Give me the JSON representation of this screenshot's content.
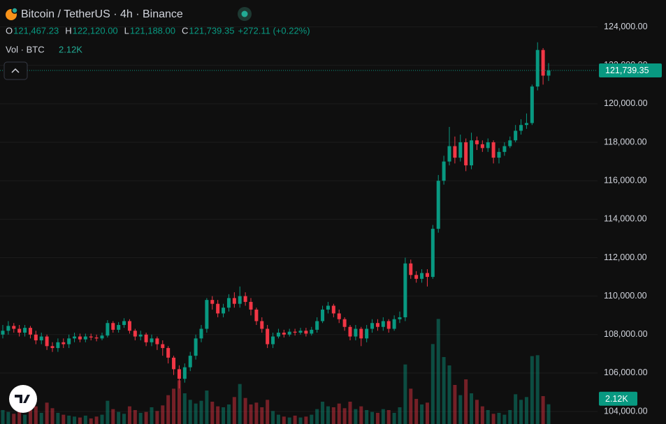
{
  "chart_data": {
    "type": "candlestick",
    "title": "Bitcoin / TetherUS · 4h · Binance",
    "legend": [
      {
        "key": "O",
        "value": "121,467.23"
      },
      {
        "key": "H",
        "value": "122,120.00"
      },
      {
        "key": "L",
        "value": "121,188.00"
      },
      {
        "key": "C",
        "value": "121,739.35"
      }
    ],
    "change": "+272.11 (+0.22%)",
    "volume_title": "Vol · BTC",
    "volume_value": "2.12K",
    "up_color": "#089981",
    "down_color": "#f23645",
    "ylim": [
      103350,
      125400
    ],
    "yticks": [
      {
        "value": 104000,
        "label": "104,000.00"
      },
      {
        "value": 106000,
        "label": "106,000.00"
      },
      {
        "value": 108000,
        "label": "108,000.00"
      },
      {
        "value": 110000,
        "label": "110,000.00"
      },
      {
        "value": 112000,
        "label": "112,000.00"
      },
      {
        "value": 114000,
        "label": "114,000.00"
      },
      {
        "value": 116000,
        "label": "116,000.00"
      },
      {
        "value": 118000,
        "label": "118,000.00"
      },
      {
        "value": 120000,
        "label": "120,000.00"
      },
      {
        "value": 122000,
        "label": "122,000.00"
      },
      {
        "value": 124000,
        "label": "124,000.00"
      }
    ],
    "grid": true,
    "volume_lim": [
      0,
      12000
    ],
    "open": [
      108000,
      108200,
      108450,
      108300,
      108100,
      108350,
      108000,
      107700,
      107900,
      107400,
      107300,
      107600,
      107500,
      107800,
      107900,
      107750,
      107900,
      107850,
      107800,
      107950,
      108600,
      108250,
      108500,
      108700,
      108200,
      107900,
      108000,
      107600,
      107800,
      107500,
      107300,
      106800,
      106200,
      105700,
      106300,
      106900,
      107800,
      108300,
      109800,
      109600,
      109100,
      109400,
      109900,
      109600,
      110000,
      109700,
      109300,
      108700,
      108300,
      107500,
      107900,
      108100,
      108000,
      108150,
      108100,
      108200,
      108050,
      108250,
      108700,
      109300,
      109500,
      109100,
      108800,
      108400,
      107900,
      108300,
      107800,
      108300,
      108600,
      108400,
      108700,
      108300,
      108800,
      108900,
      111700,
      111100,
      110900,
      111200,
      111000,
      113500,
      116000,
      117000,
      117800,
      117200,
      118000,
      116800,
      118100,
      117900,
      117700,
      118000,
      117200,
      117500,
      117800,
      118100,
      118600,
      118900,
      119000,
      120900,
      122800,
      121467.23
    ],
    "high": [
      108500,
      108700,
      108600,
      108500,
      108500,
      108450,
      108200,
      108100,
      108000,
      107600,
      107800,
      107800,
      108000,
      108100,
      108050,
      108050,
      108050,
      108000,
      108100,
      108750,
      108700,
      108650,
      108850,
      108800,
      108300,
      108200,
      108100,
      108000,
      107900,
      107700,
      107400,
      106900,
      106400,
      106500,
      107100,
      108000,
      108500,
      109900,
      110000,
      109800,
      109600,
      110100,
      110200,
      110500,
      110200,
      109900,
      109400,
      108900,
      108500,
      108100,
      108300,
      108250,
      108300,
      108300,
      108350,
      108350,
      108400,
      108900,
      109500,
      109700,
      109600,
      109300,
      108900,
      108500,
      108500,
      108400,
      108500,
      108800,
      108800,
      108900,
      108800,
      109000,
      109200,
      112000,
      111900,
      111300,
      111400,
      111400,
      113700,
      116300,
      117300,
      118800,
      118300,
      118400,
      118200,
      118500,
      118300,
      118100,
      118200,
      118100,
      117700,
      118000,
      118300,
      118900,
      119200,
      119500,
      121000,
      123200,
      122900,
      122120
    ],
    "low": [
      107800,
      108000,
      108100,
      107900,
      107900,
      107800,
      107500,
      107500,
      107200,
      107100,
      107100,
      107300,
      107300,
      107600,
      107600,
      107600,
      107700,
      107650,
      107700,
      107850,
      108100,
      108100,
      108350,
      108050,
      107700,
      107700,
      107400,
      107400,
      107200,
      106900,
      106500,
      105900,
      105200,
      105500,
      106100,
      106700,
      107600,
      108100,
      109300,
      108900,
      108900,
      109200,
      109400,
      109400,
      109500,
      109000,
      108500,
      108100,
      107300,
      107300,
      107800,
      107850,
      107900,
      107950,
      108000,
      107900,
      107950,
      108100,
      108600,
      109100,
      108900,
      108600,
      108200,
      107700,
      107700,
      107400,
      107600,
      108100,
      108200,
      108200,
      108100,
      108200,
      108600,
      108700,
      110900,
      110700,
      110700,
      110500,
      110900,
      113300,
      115800,
      116800,
      116900,
      117000,
      116500,
      116600,
      117600,
      117500,
      117500,
      116900,
      116900,
      117300,
      117700,
      118000,
      118400,
      118700,
      118900,
      120700,
      121000,
      121188
    ],
    "close": [
      108200,
      108450,
      108300,
      108100,
      108350,
      108000,
      107700,
      107900,
      107400,
      107300,
      107600,
      107500,
      107800,
      107900,
      107750,
      107900,
      107850,
      107800,
      107950,
      108600,
      108250,
      108500,
      108700,
      108200,
      107900,
      108000,
      107600,
      107800,
      107500,
      107300,
      106800,
      106200,
      105700,
      106300,
      106900,
      107800,
      108300,
      109800,
      109600,
      109100,
      109400,
      109900,
      109600,
      110000,
      109700,
      109300,
      108700,
      108300,
      107500,
      107900,
      108100,
      108000,
      108150,
      108100,
      108200,
      108050,
      108250,
      108700,
      109300,
      109500,
      109100,
      108800,
      108400,
      107900,
      108300,
      107800,
      108300,
      108600,
      108400,
      108700,
      108300,
      108800,
      108900,
      111700,
      111100,
      110900,
      111200,
      111000,
      113500,
      116000,
      117000,
      117800,
      117200,
      118000,
      116800,
      118100,
      117900,
      117700,
      118000,
      117200,
      117500,
      117800,
      118100,
      118600,
      118900,
      119000,
      120900,
      122800,
      121467.23,
      121739.35
    ],
    "volume": [
      1500,
      1300,
      1100,
      1400,
      1000,
      1600,
      1900,
      1200,
      2300,
      1700,
      1200,
      1000,
      900,
      800,
      700,
      900,
      600,
      800,
      1000,
      2500,
      1600,
      1300,
      1100,
      1900,
      1500,
      1200,
      1300,
      1800,
      1400,
      2000,
      3100,
      3800,
      4700,
      3300,
      2600,
      2200,
      2500,
      3600,
      2400,
      1900,
      1800,
      2100,
      2900,
      4300,
      2800,
      2100,
      2300,
      1800,
      2600,
      1400,
      1000,
      800,
      700,
      900,
      700,
      800,
      1000,
      1600,
      2400,
      1900,
      1800,
      2200,
      1700,
      2400,
      1600,
      1900,
      1500,
      1300,
      1200,
      1600,
      1500,
      1200,
      1800,
      6400,
      3800,
      2700,
      2100,
      2300,
      8600,
      11300,
      7200,
      6300,
      4200,
      3100,
      4800,
      3300,
      2600,
      1900,
      1500,
      1100,
      1200,
      1000,
      1500,
      3200,
      2600,
      2900,
      7300,
      7400,
      3000,
      2120
    ]
  }
}
